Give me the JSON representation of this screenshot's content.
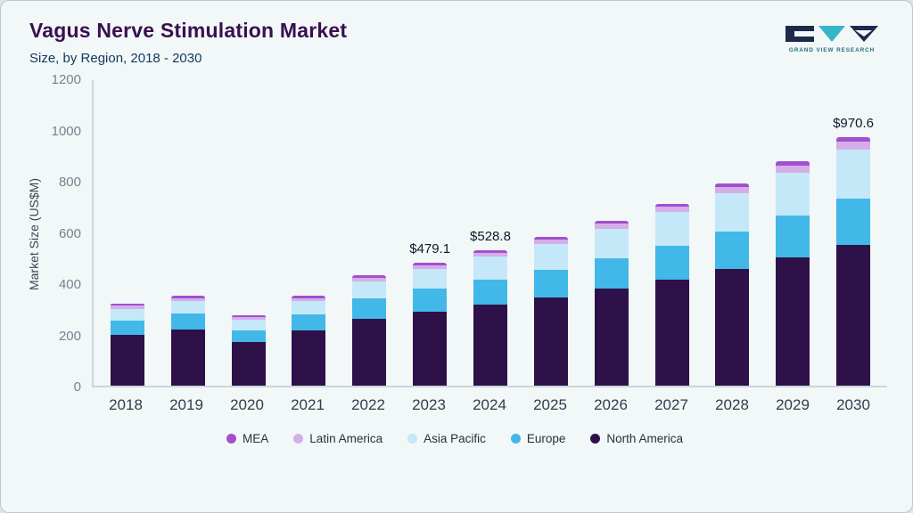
{
  "header": {
    "title": "Vagus Nerve Stimulation Market",
    "subtitle": "Size, by Region, 2018 - 2030",
    "logo_text": "GRAND VIEW RESEARCH"
  },
  "chart_data": {
    "type": "bar",
    "stacked": true,
    "title": "Vagus Nerve Stimulation Market Size, by Region, 2018 - 2030",
    "ylabel": "Market Size (US$M)",
    "ylim": [
      0,
      1200
    ],
    "yticks": [
      0,
      200,
      400,
      600,
      800,
      1000,
      1200
    ],
    "categories": [
      "2018",
      "2019",
      "2020",
      "2021",
      "2022",
      "2023",
      "2024",
      "2025",
      "2026",
      "2027",
      "2028",
      "2029",
      "2030"
    ],
    "series": [
      {
        "name": "North America",
        "color": "#2e1149",
        "values": [
          200,
          220,
          170,
          215,
          262,
          288,
          315,
          345,
          380,
          415,
          455,
          500,
          550
        ]
      },
      {
        "name": "Europe",
        "color": "#41b8e8",
        "values": [
          55,
          62,
          46,
          62,
          80,
          90,
          100,
          108,
          118,
          130,
          148,
          165,
          182
        ]
      },
      {
        "name": "Asia Pacific",
        "color": "#c5e8f9",
        "values": [
          45,
          48,
          42,
          52,
          66,
          78,
          88,
          100,
          115,
          132,
          150,
          168,
          190
        ]
      },
      {
        "name": "Latin America",
        "color": "#d5aee8",
        "values": [
          12,
          12,
          10,
          13,
          14,
          14,
          16,
          17,
          20,
          21,
          24,
          27,
          30
        ]
      },
      {
        "name": "MEA",
        "color": "#a24fd0",
        "values": [
          8,
          8,
          7,
          8,
          8,
          9.1,
          9.8,
          10,
          12,
          12,
          13,
          15,
          18.6
        ]
      }
    ],
    "annotations": {
      "2023": "$479.1",
      "2024": "$528.8",
      "2030": "$970.6"
    },
    "legend_order": [
      "MEA",
      "Latin America",
      "Asia Pacific",
      "Europe",
      "North America"
    ],
    "legend_position": "bottom",
    "grid": false
  }
}
